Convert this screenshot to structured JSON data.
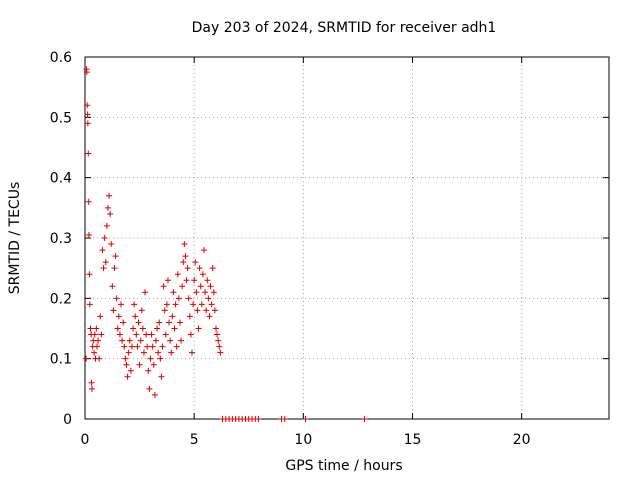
{
  "chart_data": {
    "type": "scatter",
    "title": "Day 203 of 2024, SRMTID for receiver adh1",
    "xlabel": "GPS time / hours",
    "ylabel": "SRMTID / TECUs",
    "xlim": [
      0,
      24
    ],
    "ylim": [
      0,
      0.6
    ],
    "grid": true,
    "x_ticks": [
      {
        "value": 0,
        "label": "0"
      },
      {
        "value": 5,
        "label": "5"
      },
      {
        "value": 10,
        "label": "10"
      },
      {
        "value": 15,
        "label": "15"
      },
      {
        "value": 20,
        "label": "20"
      }
    ],
    "y_ticks": [
      {
        "value": 0,
        "label": "0"
      },
      {
        "value": 0.1,
        "label": "0.1"
      },
      {
        "value": 0.2,
        "label": "0.2"
      },
      {
        "value": 0.3,
        "label": "0.3"
      },
      {
        "value": 0.4,
        "label": "0.4"
      },
      {
        "value": 0.5,
        "label": "0.5"
      },
      {
        "value": 0.6,
        "label": "0.6"
      }
    ],
    "marker": "+",
    "color": "#dd0000",
    "series": [
      {
        "name": "adh1",
        "points": [
          [
            0.05,
            0.1
          ],
          [
            0.07,
            0.58
          ],
          [
            0.08,
            0.575
          ],
          [
            0.1,
            0.52
          ],
          [
            0.12,
            0.505
          ],
          [
            0.13,
            0.49
          ],
          [
            0.15,
            0.44
          ],
          [
            0.17,
            0.36
          ],
          [
            0.18,
            0.305
          ],
          [
            0.2,
            0.24
          ],
          [
            0.22,
            0.19
          ],
          [
            0.25,
            0.15
          ],
          [
            0.28,
            0.14
          ],
          [
            0.3,
            0.06
          ],
          [
            0.32,
            0.05
          ],
          [
            0.35,
            0.12
          ],
          [
            0.38,
            0.13
          ],
          [
            0.42,
            0.11
          ],
          [
            0.45,
            0.14
          ],
          [
            0.48,
            0.1
          ],
          [
            0.52,
            0.15
          ],
          [
            0.55,
            0.12
          ],
          [
            0.6,
            0.13
          ],
          [
            0.65,
            0.1
          ],
          [
            0.7,
            0.17
          ],
          [
            0.75,
            0.14
          ],
          [
            0.8,
            0.28
          ],
          [
            0.85,
            0.25
          ],
          [
            0.9,
            0.3
          ],
          [
            0.95,
            0.26
          ],
          [
            1.0,
            0.32
          ],
          [
            1.05,
            0.35
          ],
          [
            1.1,
            0.37
          ],
          [
            1.15,
            0.34
          ],
          [
            1.2,
            0.29
          ],
          [
            1.25,
            0.22
          ],
          [
            1.3,
            0.18
          ],
          [
            1.35,
            0.25
          ],
          [
            1.4,
            0.27
          ],
          [
            1.45,
            0.2
          ],
          [
            1.5,
            0.15
          ],
          [
            1.55,
            0.17
          ],
          [
            1.6,
            0.14
          ],
          [
            1.65,
            0.19
          ],
          [
            1.7,
            0.13
          ],
          [
            1.75,
            0.16
          ],
          [
            1.8,
            0.12
          ],
          [
            1.85,
            0.1
          ],
          [
            1.9,
            0.09
          ],
          [
            1.95,
            0.07
          ],
          [
            2.0,
            0.11
          ],
          [
            2.05,
            0.13
          ],
          [
            2.1,
            0.08
          ],
          [
            2.15,
            0.12
          ],
          [
            2.2,
            0.15
          ],
          [
            2.25,
            0.19
          ],
          [
            2.3,
            0.17
          ],
          [
            2.35,
            0.14
          ],
          [
            2.4,
            0.12
          ],
          [
            2.45,
            0.16
          ],
          [
            2.5,
            0.09
          ],
          [
            2.55,
            0.13
          ],
          [
            2.6,
            0.18
          ],
          [
            2.65,
            0.15
          ],
          [
            2.7,
            0.11
          ],
          [
            2.75,
            0.21
          ],
          [
            2.8,
            0.14
          ],
          [
            2.85,
            0.12
          ],
          [
            2.9,
            0.08
          ],
          [
            2.95,
            0.05
          ],
          [
            3.0,
            0.1
          ],
          [
            3.05,
            0.14
          ],
          [
            3.1,
            0.12
          ],
          [
            3.15,
            0.09
          ],
          [
            3.2,
            0.04
          ],
          [
            3.25,
            0.13
          ],
          [
            3.3,
            0.15
          ],
          [
            3.35,
            0.11
          ],
          [
            3.4,
            0.16
          ],
          [
            3.45,
            0.1
          ],
          [
            3.5,
            0.07
          ],
          [
            3.55,
            0.12
          ],
          [
            3.6,
            0.22
          ],
          [
            3.65,
            0.18
          ],
          [
            3.7,
            0.14
          ],
          [
            3.75,
            0.19
          ],
          [
            3.8,
            0.23
          ],
          [
            3.85,
            0.16
          ],
          [
            3.9,
            0.13
          ],
          [
            3.95,
            0.11
          ],
          [
            4.0,
            0.17
          ],
          [
            4.05,
            0.21
          ],
          [
            4.1,
            0.15
          ],
          [
            4.15,
            0.19
          ],
          [
            4.2,
            0.12
          ],
          [
            4.25,
            0.24
          ],
          [
            4.3,
            0.2
          ],
          [
            4.35,
            0.16
          ],
          [
            4.4,
            0.13
          ],
          [
            4.45,
            0.22
          ],
          [
            4.5,
            0.26
          ],
          [
            4.55,
            0.29
          ],
          [
            4.6,
            0.27
          ],
          [
            4.65,
            0.23
          ],
          [
            4.7,
            0.25
          ],
          [
            4.75,
            0.2
          ],
          [
            4.8,
            0.17
          ],
          [
            4.85,
            0.14
          ],
          [
            4.9,
            0.11
          ],
          [
            4.95,
            0.19
          ],
          [
            5.0,
            0.23
          ],
          [
            5.05,
            0.26
          ],
          [
            5.1,
            0.21
          ],
          [
            5.15,
            0.18
          ],
          [
            5.2,
            0.15
          ],
          [
            5.25,
            0.25
          ],
          [
            5.3,
            0.22
          ],
          [
            5.35,
            0.19
          ],
          [
            5.4,
            0.24
          ],
          [
            5.45,
            0.28
          ],
          [
            5.5,
            0.21
          ],
          [
            5.55,
            0.18
          ],
          [
            5.6,
            0.23
          ],
          [
            5.65,
            0.2
          ],
          [
            5.7,
            0.17
          ],
          [
            5.75,
            0.22
          ],
          [
            5.8,
            0.19
          ],
          [
            5.85,
            0.25
          ],
          [
            5.9,
            0.21
          ],
          [
            5.95,
            0.18
          ],
          [
            6.0,
            0.15
          ],
          [
            6.05,
            0.14
          ],
          [
            6.1,
            0.13
          ],
          [
            6.15,
            0.12
          ],
          [
            6.2,
            0.11
          ],
          [
            6.3,
            0.0
          ],
          [
            6.45,
            0.0
          ],
          [
            6.6,
            0.0
          ],
          [
            6.75,
            0.0
          ],
          [
            6.9,
            0.0
          ],
          [
            7.05,
            0.0
          ],
          [
            7.2,
            0.0
          ],
          [
            7.35,
            0.0
          ],
          [
            7.5,
            0.0
          ],
          [
            7.65,
            0.0
          ],
          [
            7.8,
            0.0
          ],
          [
            7.95,
            0.0
          ],
          [
            9.0,
            0.0
          ],
          [
            9.15,
            0.0
          ],
          [
            10.1,
            0.0
          ],
          [
            12.8,
            0.0
          ]
        ]
      }
    ]
  }
}
